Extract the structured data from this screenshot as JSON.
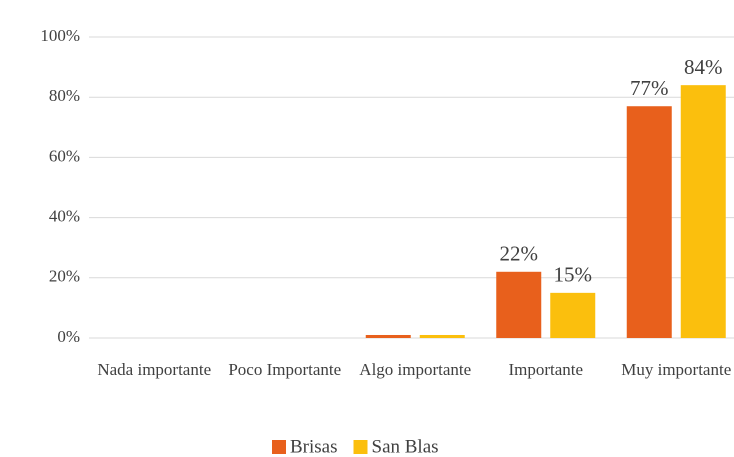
{
  "chart_data": {
    "type": "bar",
    "categories": [
      "Nada importante",
      "Poco Importante",
      "Algo importante",
      "Importante",
      "Muy importante"
    ],
    "series": [
      {
        "name": "Brisas",
        "color": "#e8601c",
        "values": [
          0,
          0,
          1,
          22,
          77
        ],
        "value_labels": [
          null,
          null,
          null,
          "22%",
          "77%"
        ]
      },
      {
        "name": "San Blas",
        "color": "#fbbf0d",
        "values": [
          0,
          0,
          1,
          15,
          84
        ],
        "value_labels": [
          null,
          null,
          null,
          "15%",
          "84%"
        ]
      }
    ],
    "ylim": [
      0,
      100
    ],
    "yticks": [
      {
        "value": 0,
        "label": "0%"
      },
      {
        "value": 20,
        "label": "20%"
      },
      {
        "value": 40,
        "label": "40%"
      },
      {
        "value": 60,
        "label": "60%"
      },
      {
        "value": 80,
        "label": "80%"
      },
      {
        "value": 100,
        "label": "100%"
      }
    ],
    "grid": true
  }
}
